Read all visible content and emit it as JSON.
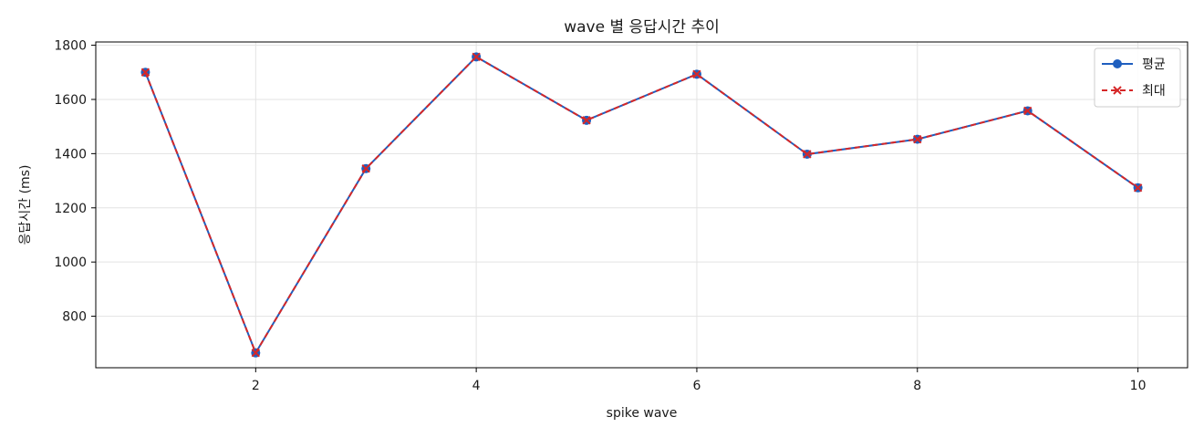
{
  "chart_data": {
    "type": "line",
    "title": "wave 별 응답시간 추이",
    "xlabel": "spike wave",
    "ylabel": "응답시간 (ms)",
    "x": [
      1,
      2,
      3,
      4,
      5,
      6,
      7,
      8,
      9,
      10
    ],
    "xlim": [
      0.55,
      10.45
    ],
    "ylim": [
      610,
      1812
    ],
    "xticks": [
      2,
      4,
      6,
      8,
      10
    ],
    "yticks": [
      800,
      1000,
      1200,
      1400,
      1600,
      1800
    ],
    "grid": true,
    "legend_position": "top-right",
    "series": [
      {
        "name": "평균",
        "values": [
          1700,
          665,
          1345,
          1757,
          1523,
          1693,
          1398,
          1453,
          1558,
          1274
        ],
        "color": "#1f5fbf",
        "line_style": "solid",
        "marker": "circle"
      },
      {
        "name": "최대",
        "values": [
          1700,
          665,
          1345,
          1757,
          1523,
          1693,
          1398,
          1453,
          1558,
          1274
        ],
        "color": "#d62728",
        "line_style": "dashed",
        "marker": "x"
      }
    ]
  }
}
